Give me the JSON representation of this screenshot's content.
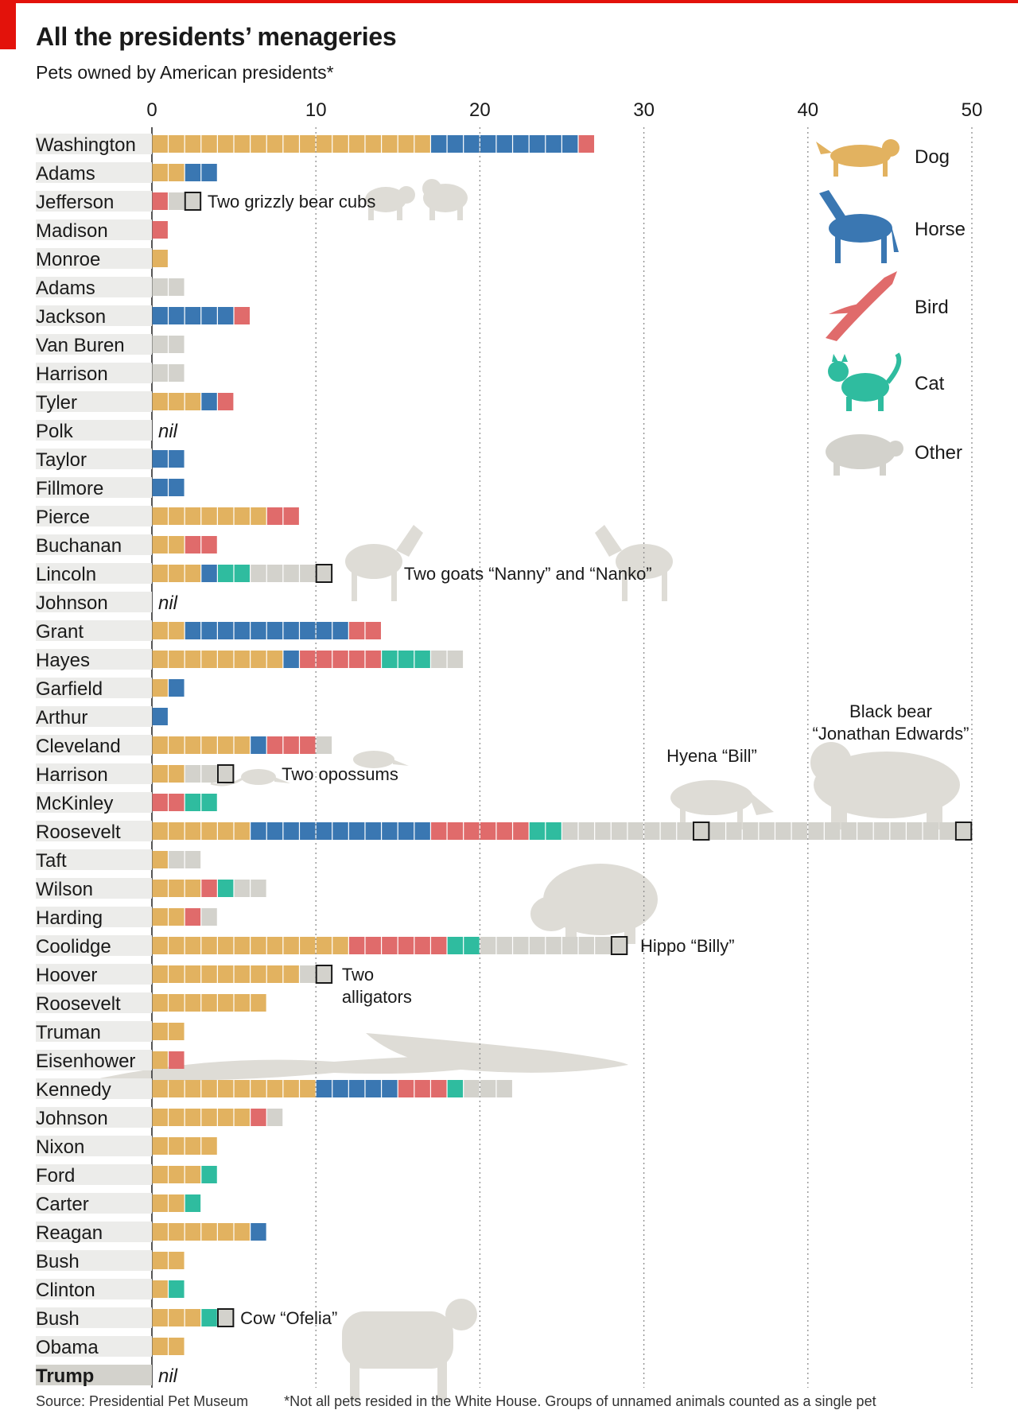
{
  "title": "All the presidents’ menageries",
  "subtitle": "Pets owned by American presidents*",
  "footer": {
    "source": "Source: Presidential Pet Museum",
    "note": "*Not all pets resided in the White House. Groups of unnamed animals counted as a single pet"
  },
  "colors": {
    "Dog": "#e2b260",
    "Horse": "#3a77b2",
    "Bird": "#e06b6b",
    "Cat": "#2fbc9f",
    "Other": "#d3d2cc",
    "brand_red": "#e3120b"
  },
  "legend_animals": [
    {
      "category": "Dog",
      "label": "Dog",
      "icon": "dog-icon"
    },
    {
      "category": "Horse",
      "label": "Horse",
      "icon": "horse-icon"
    },
    {
      "category": "Bird",
      "label": "Bird",
      "icon": "bird-icon"
    },
    {
      "category": "Cat",
      "label": "Cat",
      "icon": "cat-icon"
    },
    {
      "category": "Other",
      "label": "Other",
      "icon": "pig-icon"
    }
  ],
  "chart_data": {
    "type": "bar",
    "stacked": true,
    "orientation": "horizontal",
    "title": "All the presidents’ menageries",
    "subtitle": "Pets owned by American presidents*",
    "xlim": [
      0,
      50
    ],
    "xticks": [
      0,
      10,
      20,
      30,
      40,
      50
    ],
    "grid": true,
    "legend_position": "top-right",
    "legend": [
      "Dog",
      "Horse",
      "Bird",
      "Cat",
      "Other"
    ],
    "nil_label": "nil",
    "presidents": [
      {
        "name": "Washington",
        "Dog": 17,
        "Horse": 9,
        "Bird": 1,
        "Cat": 0,
        "Other": 0
      },
      {
        "name": "Adams",
        "Dog": 2,
        "Horse": 2,
        "Bird": 0,
        "Cat": 0,
        "Other": 0
      },
      {
        "name": "Jefferson",
        "Dog": 0,
        "Horse": 0,
        "Bird": 1,
        "Cat": 0,
        "Other": 2,
        "highlight": [
          2
        ]
      },
      {
        "name": "Madison",
        "Dog": 0,
        "Horse": 0,
        "Bird": 1,
        "Cat": 0,
        "Other": 0
      },
      {
        "name": "Monroe",
        "Dog": 1,
        "Horse": 0,
        "Bird": 0,
        "Cat": 0,
        "Other": 0
      },
      {
        "name": "Adams",
        "Dog": 0,
        "Horse": 0,
        "Bird": 0,
        "Cat": 0,
        "Other": 2
      },
      {
        "name": "Jackson",
        "Dog": 0,
        "Horse": 5,
        "Bird": 1,
        "Cat": 0,
        "Other": 0
      },
      {
        "name": "Van Buren",
        "Dog": 0,
        "Horse": 0,
        "Bird": 0,
        "Cat": 0,
        "Other": 2
      },
      {
        "name": "Harrison",
        "Dog": 0,
        "Horse": 0,
        "Bird": 0,
        "Cat": 0,
        "Other": 2
      },
      {
        "name": "Tyler",
        "Dog": 3,
        "Horse": 1,
        "Bird": 1,
        "Cat": 0,
        "Other": 0
      },
      {
        "name": "Polk",
        "Dog": 0,
        "Horse": 0,
        "Bird": 0,
        "Cat": 0,
        "Other": 0,
        "nil": true
      },
      {
        "name": "Taylor",
        "Dog": 0,
        "Horse": 2,
        "Bird": 0,
        "Cat": 0,
        "Other": 0
      },
      {
        "name": "Fillmore",
        "Dog": 0,
        "Horse": 2,
        "Bird": 0,
        "Cat": 0,
        "Other": 0
      },
      {
        "name": "Pierce",
        "Dog": 7,
        "Horse": 0,
        "Bird": 2,
        "Cat": 0,
        "Other": 0
      },
      {
        "name": "Buchanan",
        "Dog": 2,
        "Horse": 0,
        "Bird": 2,
        "Cat": 0,
        "Other": 0
      },
      {
        "name": "Lincoln",
        "Dog": 3,
        "Horse": 1,
        "Bird": 0,
        "Cat": 2,
        "Other": 5,
        "highlight": [
          10
        ]
      },
      {
        "name": "Johnson",
        "Dog": 0,
        "Horse": 0,
        "Bird": 0,
        "Cat": 0,
        "Other": 0,
        "nil": true
      },
      {
        "name": "Grant",
        "Dog": 2,
        "Horse": 10,
        "Bird": 2,
        "Cat": 0,
        "Other": 0
      },
      {
        "name": "Hayes",
        "Dog": 8,
        "Horse": 1,
        "Bird": 5,
        "Cat": 3,
        "Other": 2
      },
      {
        "name": "Garfield",
        "Dog": 1,
        "Horse": 1,
        "Bird": 0,
        "Cat": 0,
        "Other": 0
      },
      {
        "name": "Arthur",
        "Dog": 0,
        "Horse": 1,
        "Bird": 0,
        "Cat": 0,
        "Other": 0
      },
      {
        "name": "Cleveland",
        "Dog": 6,
        "Horse": 1,
        "Bird": 3,
        "Cat": 0,
        "Other": 1
      },
      {
        "name": "Harrison",
        "Dog": 2,
        "Horse": 0,
        "Bird": 0,
        "Cat": 0,
        "Other": 3,
        "highlight": [
          4
        ]
      },
      {
        "name": "McKinley",
        "Dog": 0,
        "Horse": 0,
        "Bird": 2,
        "Cat": 2,
        "Other": 0
      },
      {
        "name": "Roosevelt",
        "Dog": 6,
        "Horse": 11,
        "Bird": 6,
        "Cat": 2,
        "Other": 25,
        "highlight": [
          33,
          49
        ]
      },
      {
        "name": "Taft",
        "Dog": 1,
        "Horse": 0,
        "Bird": 0,
        "Cat": 0,
        "Other": 2
      },
      {
        "name": "Wilson",
        "Dog": 3,
        "Horse": 0,
        "Bird": 1,
        "Cat": 1,
        "Other": 2
      },
      {
        "name": "Harding",
        "Dog": 2,
        "Horse": 0,
        "Bird": 1,
        "Cat": 0,
        "Other": 1
      },
      {
        "name": "Coolidge",
        "Dog": 12,
        "Horse": 0,
        "Bird": 6,
        "Cat": 2,
        "Other": 9,
        "highlight": [
          28
        ]
      },
      {
        "name": "Hoover",
        "Dog": 9,
        "Horse": 0,
        "Bird": 0,
        "Cat": 0,
        "Other": 2,
        "highlight": [
          10
        ]
      },
      {
        "name": "Roosevelt",
        "Dog": 7,
        "Horse": 0,
        "Bird": 0,
        "Cat": 0,
        "Other": 0
      },
      {
        "name": "Truman",
        "Dog": 2,
        "Horse": 0,
        "Bird": 0,
        "Cat": 0,
        "Other": 0
      },
      {
        "name": "Eisenhower",
        "Dog": 1,
        "Horse": 0,
        "Bird": 1,
        "Cat": 0,
        "Other": 0
      },
      {
        "name": "Kennedy",
        "Dog": 10,
        "Horse": 5,
        "Bird": 3,
        "Cat": 1,
        "Other": 3
      },
      {
        "name": "Johnson",
        "Dog": 6,
        "Horse": 0,
        "Bird": 1,
        "Cat": 0,
        "Other": 1
      },
      {
        "name": "Nixon",
        "Dog": 4,
        "Horse": 0,
        "Bird": 0,
        "Cat": 0,
        "Other": 0
      },
      {
        "name": "Ford",
        "Dog": 3,
        "Horse": 0,
        "Bird": 0,
        "Cat": 1,
        "Other": 0
      },
      {
        "name": "Carter",
        "Dog": 2,
        "Horse": 0,
        "Bird": 0,
        "Cat": 1,
        "Other": 0
      },
      {
        "name": "Reagan",
        "Dog": 6,
        "Horse": 1,
        "Bird": 0,
        "Cat": 0,
        "Other": 0
      },
      {
        "name": "Bush",
        "Dog": 2,
        "Horse": 0,
        "Bird": 0,
        "Cat": 0,
        "Other": 0
      },
      {
        "name": "Clinton",
        "Dog": 1,
        "Horse": 0,
        "Bird": 0,
        "Cat": 1,
        "Other": 0
      },
      {
        "name": "Bush",
        "Dog": 3,
        "Horse": 0,
        "Bird": 0,
        "Cat": 1,
        "Other": 1,
        "highlight": [
          4
        ]
      },
      {
        "name": "Obama",
        "Dog": 2,
        "Horse": 0,
        "Bird": 0,
        "Cat": 0,
        "Other": 0
      },
      {
        "name": "Trump",
        "Dog": 0,
        "Horse": 0,
        "Bird": 0,
        "Cat": 0,
        "Other": 0,
        "nil": true,
        "bold": true
      }
    ],
    "annotations": [
      {
        "text": "Two grizzly bear cubs",
        "president": "Jefferson",
        "icon": "bear-cubs-icon"
      },
      {
        "text": "Two goats “Nanny” and “Nanko”",
        "president": "Lincoln",
        "icon": "goat-icon"
      },
      {
        "text": "Two opossums",
        "president": "Harrison",
        "icon": "opossum-icon"
      },
      {
        "text": "Hyena “Bill”",
        "president": "Roosevelt",
        "icon": "hyena-icon"
      },
      {
        "text": "Black bear",
        "president": "Roosevelt",
        "icon": "black-bear-icon"
      },
      {
        "text": "“Jonathan Edwards”",
        "president": "Roosevelt"
      },
      {
        "text": "Hippo “Billy”",
        "president": "Coolidge",
        "icon": "hippo-icon"
      },
      {
        "text": "Two",
        "president": "Hoover"
      },
      {
        "text": "alligators",
        "president": "Hoover",
        "icon": "alligator-icon"
      },
      {
        "text": "Cow “Ofelia”",
        "president": "Bush",
        "icon": "cow-icon"
      }
    ]
  }
}
